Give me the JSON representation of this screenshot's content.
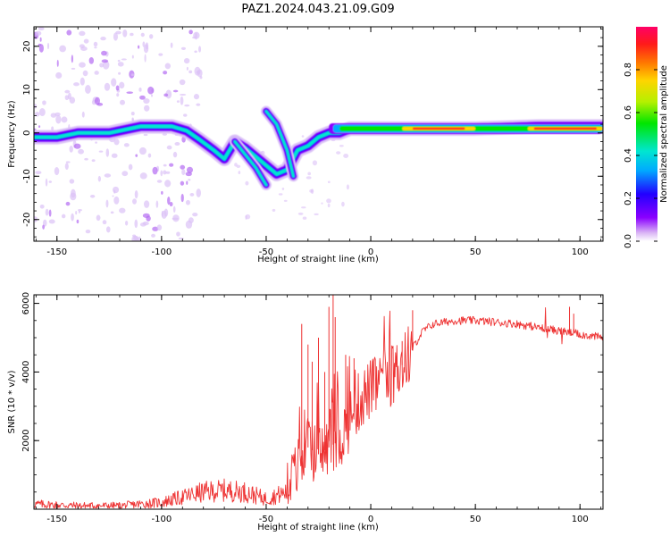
{
  "title": "PAZ1.2024.043.21.09.G09",
  "chart_data": [
    {
      "type": "heatmap",
      "xlabel": "Height of straight line (km)",
      "ylabel": "Frequency (Hz)",
      "xlim": [
        -161,
        111
      ],
      "ylim": [
        -25,
        24.5
      ],
      "xticks": [
        -150,
        -100,
        -50,
        0,
        50,
        100
      ],
      "yticks": [
        -20,
        -10,
        0,
        10,
        20
      ],
      "colorbar": {
        "label": "Normalized spectral amplitude",
        "ticks": [
          0.0,
          0.2,
          0.4,
          0.6,
          0.8
        ],
        "range": [
          0,
          1
        ],
        "colormap": [
          "#ffffff",
          "#d9b3f5",
          "#8a00ff",
          "#2200ff",
          "#00aaff",
          "#00e6d0",
          "#00e600",
          "#b5f000",
          "#ffd400",
          "#ff7a00",
          "#ff1a1a",
          "#ff0066"
        ]
      },
      "ridge": {
        "x": [
          -161,
          -150,
          -140,
          -125,
          -110,
          -95,
          -88,
          -82,
          -75,
          -70,
          -65,
          -60,
          -55,
          -50,
          -45,
          -40,
          -35,
          -30,
          -25,
          -20,
          -15,
          -10,
          -5,
          0,
          10,
          20,
          50,
          80,
          111
        ],
        "y": [
          -1,
          -1,
          0,
          0,
          1.5,
          1.5,
          0.5,
          -1.5,
          -4,
          -6,
          -2,
          -3.5,
          -5.5,
          -7.5,
          -9.5,
          -8.5,
          -4,
          -3,
          -1,
          0,
          0,
          1,
          1,
          1,
          1,
          1,
          1,
          1.5,
          1.5
        ]
      },
      "ridge_branches": [
        {
          "x": [
            -65,
            -55,
            -50
          ],
          "y": [
            -2,
            -8,
            -12
          ]
        },
        {
          "x": [
            -50,
            -45,
            -40,
            -37
          ],
          "y": [
            5,
            2,
            -4,
            -10
          ]
        }
      ]
    },
    {
      "type": "line",
      "xlabel": "Height of straight line (km)",
      "ylabel": "SNR (10 * v/v)",
      "xlim": [
        -161,
        111
      ],
      "ylim": [
        0,
        6250
      ],
      "xticks": [
        -150,
        -100,
        -50,
        0,
        50,
        100
      ],
      "yticks": [
        2000,
        4000,
        6000
      ],
      "color": "#ee3333",
      "trend": {
        "x": [
          -161,
          -140,
          -120,
          -100,
          -90,
          -80,
          -70,
          -60,
          -50,
          -45,
          -40,
          -35,
          -30,
          -25,
          -20,
          -15,
          -10,
          -5,
          0,
          5,
          10,
          15,
          20,
          25,
          30,
          40,
          50,
          60,
          70,
          80,
          90,
          100,
          111
        ],
        "y": [
          150,
          100,
          100,
          200,
          350,
          500,
          550,
          500,
          300,
          400,
          500,
          1200,
          1800,
          1600,
          1800,
          2000,
          2600,
          3200,
          3500,
          3700,
          3900,
          4200,
          4700,
          5200,
          5400,
          5500,
          5500,
          5450,
          5400,
          5300,
          5200,
          5100,
          5000
        ]
      },
      "spikes": {
        "x": [
          -33,
          -30,
          -28,
          -25,
          -22,
          -20,
          -18,
          -17,
          -12,
          -8,
          15,
          20,
          95,
          97
        ],
        "y": [
          5400,
          4800,
          4300,
          5000,
          4000,
          5900,
          6300,
          5600,
          4500,
          4400,
          4900,
          5800,
          5900,
          5700
        ]
      }
    }
  ]
}
